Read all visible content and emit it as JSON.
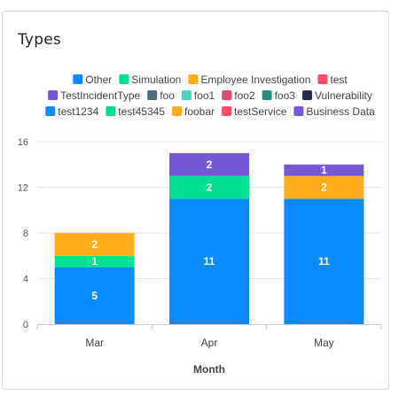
{
  "card": {
    "title": "Types"
  },
  "chart_data": {
    "type": "bar",
    "stacked": true,
    "categories": [
      "Mar",
      "Apr",
      "May"
    ],
    "xlabel": "Month",
    "ylabel": "",
    "ylim": [
      0,
      16
    ],
    "yticks": [
      0,
      4,
      8,
      12,
      16
    ],
    "grid": true,
    "legend_position": "top",
    "legend": [
      {
        "name": "Other",
        "color": "#0a8bff"
      },
      {
        "name": "Simulation",
        "color": "#00e28f"
      },
      {
        "name": "Employee Investigation",
        "color": "#ffad1a"
      },
      {
        "name": "test",
        "color": "#ff4d6a"
      },
      {
        "name": "TestIncidentType",
        "color": "#7657d6"
      },
      {
        "name": "foo",
        "color": "#4f6a7a"
      },
      {
        "name": "foo1",
        "color": "#4cd3c2"
      },
      {
        "name": "foo2",
        "color": "#d94f70"
      },
      {
        "name": "foo3",
        "color": "#2e8b83"
      },
      {
        "name": "Vulnerability",
        "color": "#242a4a"
      },
      {
        "name": "test1234",
        "color": "#0a8bff"
      },
      {
        "name": "test45345",
        "color": "#00e28f"
      },
      {
        "name": "foobar",
        "color": "#ffad1a"
      },
      {
        "name": "testService",
        "color": "#ff4d6a"
      },
      {
        "name": "Business Data",
        "color": "#7657d6"
      }
    ],
    "series": [
      {
        "name": "Other",
        "color": "#0a8bff",
        "values": [
          5,
          11,
          11
        ]
      },
      {
        "name": "Simulation",
        "color": "#00e28f",
        "values": [
          1,
          2,
          0
        ]
      },
      {
        "name": "Employee Investigation",
        "color": "#ffad1a",
        "values": [
          2,
          0,
          2
        ]
      },
      {
        "name": "TestIncidentType",
        "color": "#7657d6",
        "values": [
          0,
          2,
          1
        ]
      }
    ]
  }
}
